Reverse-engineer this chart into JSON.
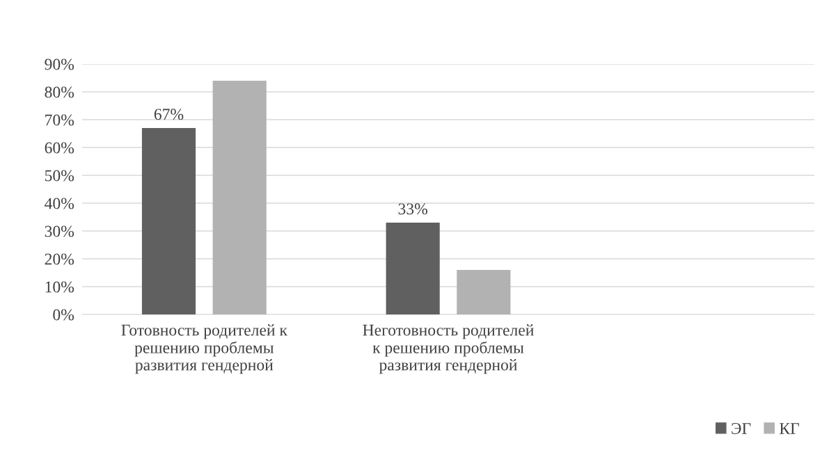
{
  "chart_data": {
    "type": "bar",
    "categories": [
      "Готовность родителей к\nрешению проблемы\nразвития гендерной",
      "Неготовность родителей\nк решению проблемы\nразвития гендерной",
      null
    ],
    "series": [
      {
        "name": "ЭГ",
        "color": "#606060",
        "values": [
          67,
          33,
          null
        ],
        "value_labels": [
          "67%",
          "33%",
          null
        ]
      },
      {
        "name": "КГ",
        "color": "#b2b2b2",
        "values": [
          84,
          16,
          null
        ]
      }
    ],
    "ylim": [
      0,
      90
    ],
    "yticks": [
      {
        "value": 0,
        "label": "0%"
      },
      {
        "value": 10,
        "label": "10%"
      },
      {
        "value": 20,
        "label": "20%"
      },
      {
        "value": 30,
        "label": "30%"
      },
      {
        "value": 40,
        "label": "40%"
      },
      {
        "value": 50,
        "label": "50%"
      },
      {
        "value": 60,
        "label": "60%"
      },
      {
        "value": 70,
        "label": "70%"
      },
      {
        "value": 80,
        "label": "80%"
      },
      {
        "value": 90,
        "label": "90%"
      }
    ],
    "grid": "y",
    "legend": "bottom right"
  }
}
